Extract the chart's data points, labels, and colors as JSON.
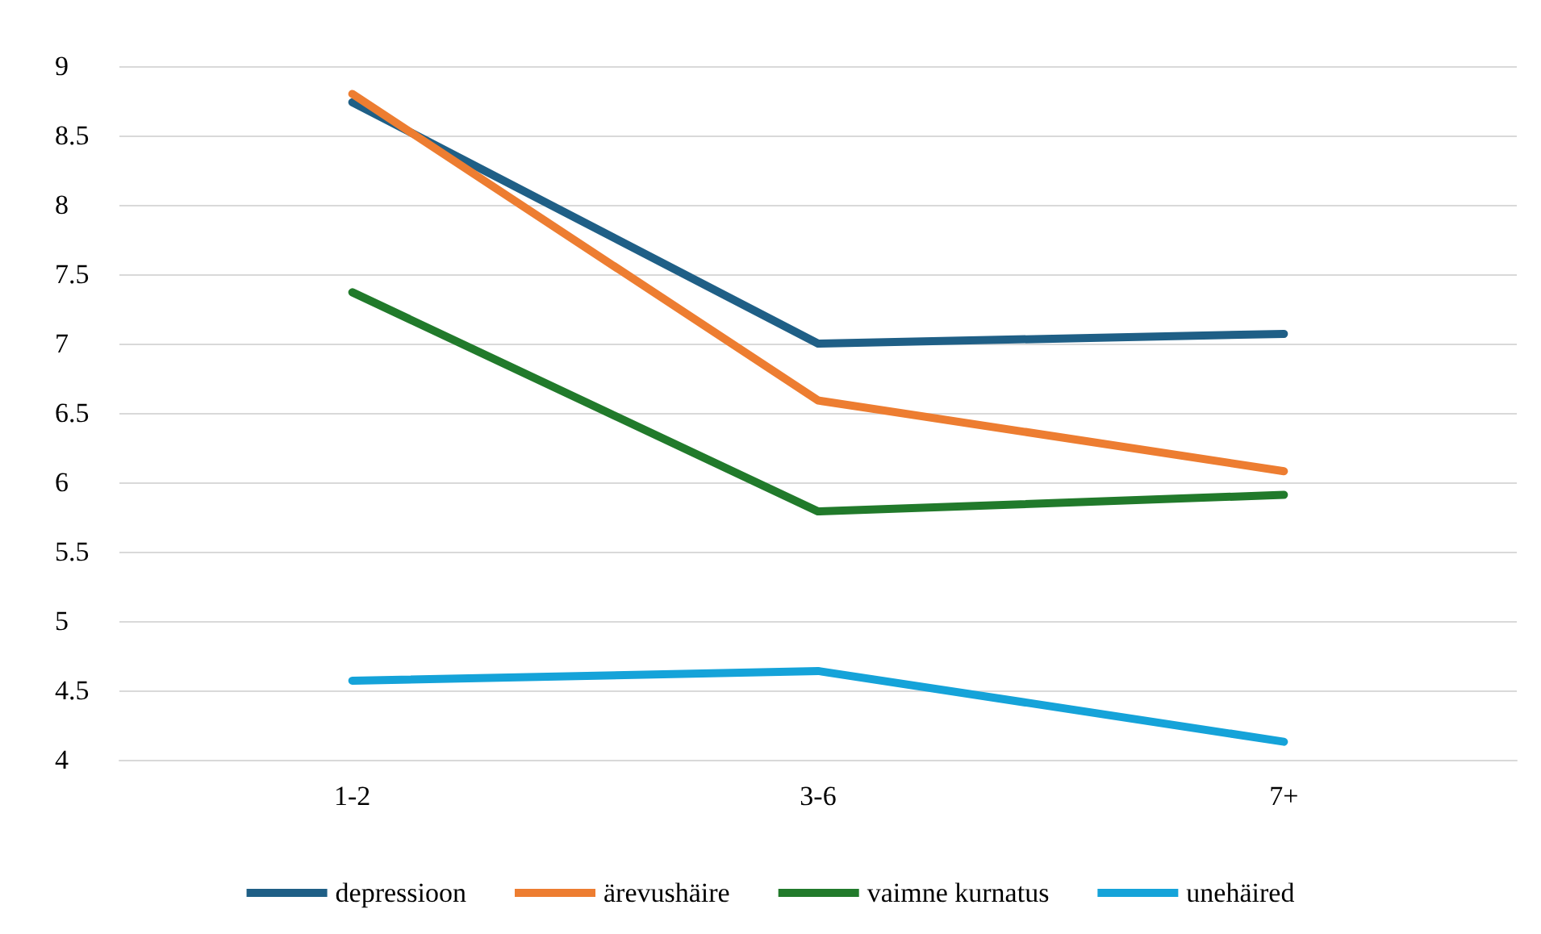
{
  "chart_data": {
    "type": "line",
    "categories": [
      "1-2",
      "3-6",
      "7+"
    ],
    "series": [
      {
        "name": "depressioon",
        "color": "#1f5f86",
        "values": [
          8.74,
          7.0,
          7.07
        ]
      },
      {
        "name": "ärevushäire",
        "color": "#ed7d31",
        "values": [
          8.8,
          6.59,
          6.08
        ]
      },
      {
        "name": "vaimne kurnatus",
        "color": "#217a2b",
        "values": [
          7.37,
          5.79,
          5.91
        ]
      },
      {
        "name": "unehäired",
        "color": "#15a3d9",
        "values": [
          4.57,
          4.64,
          4.13
        ]
      }
    ],
    "ylim": [
      4,
      9
    ],
    "yticks": [
      4,
      4.5,
      5,
      5.5,
      6,
      6.5,
      7,
      7.5,
      8,
      8.5,
      9
    ],
    "grid": "y",
    "legend": "bottom",
    "marker": "none",
    "line_style": "solid"
  }
}
